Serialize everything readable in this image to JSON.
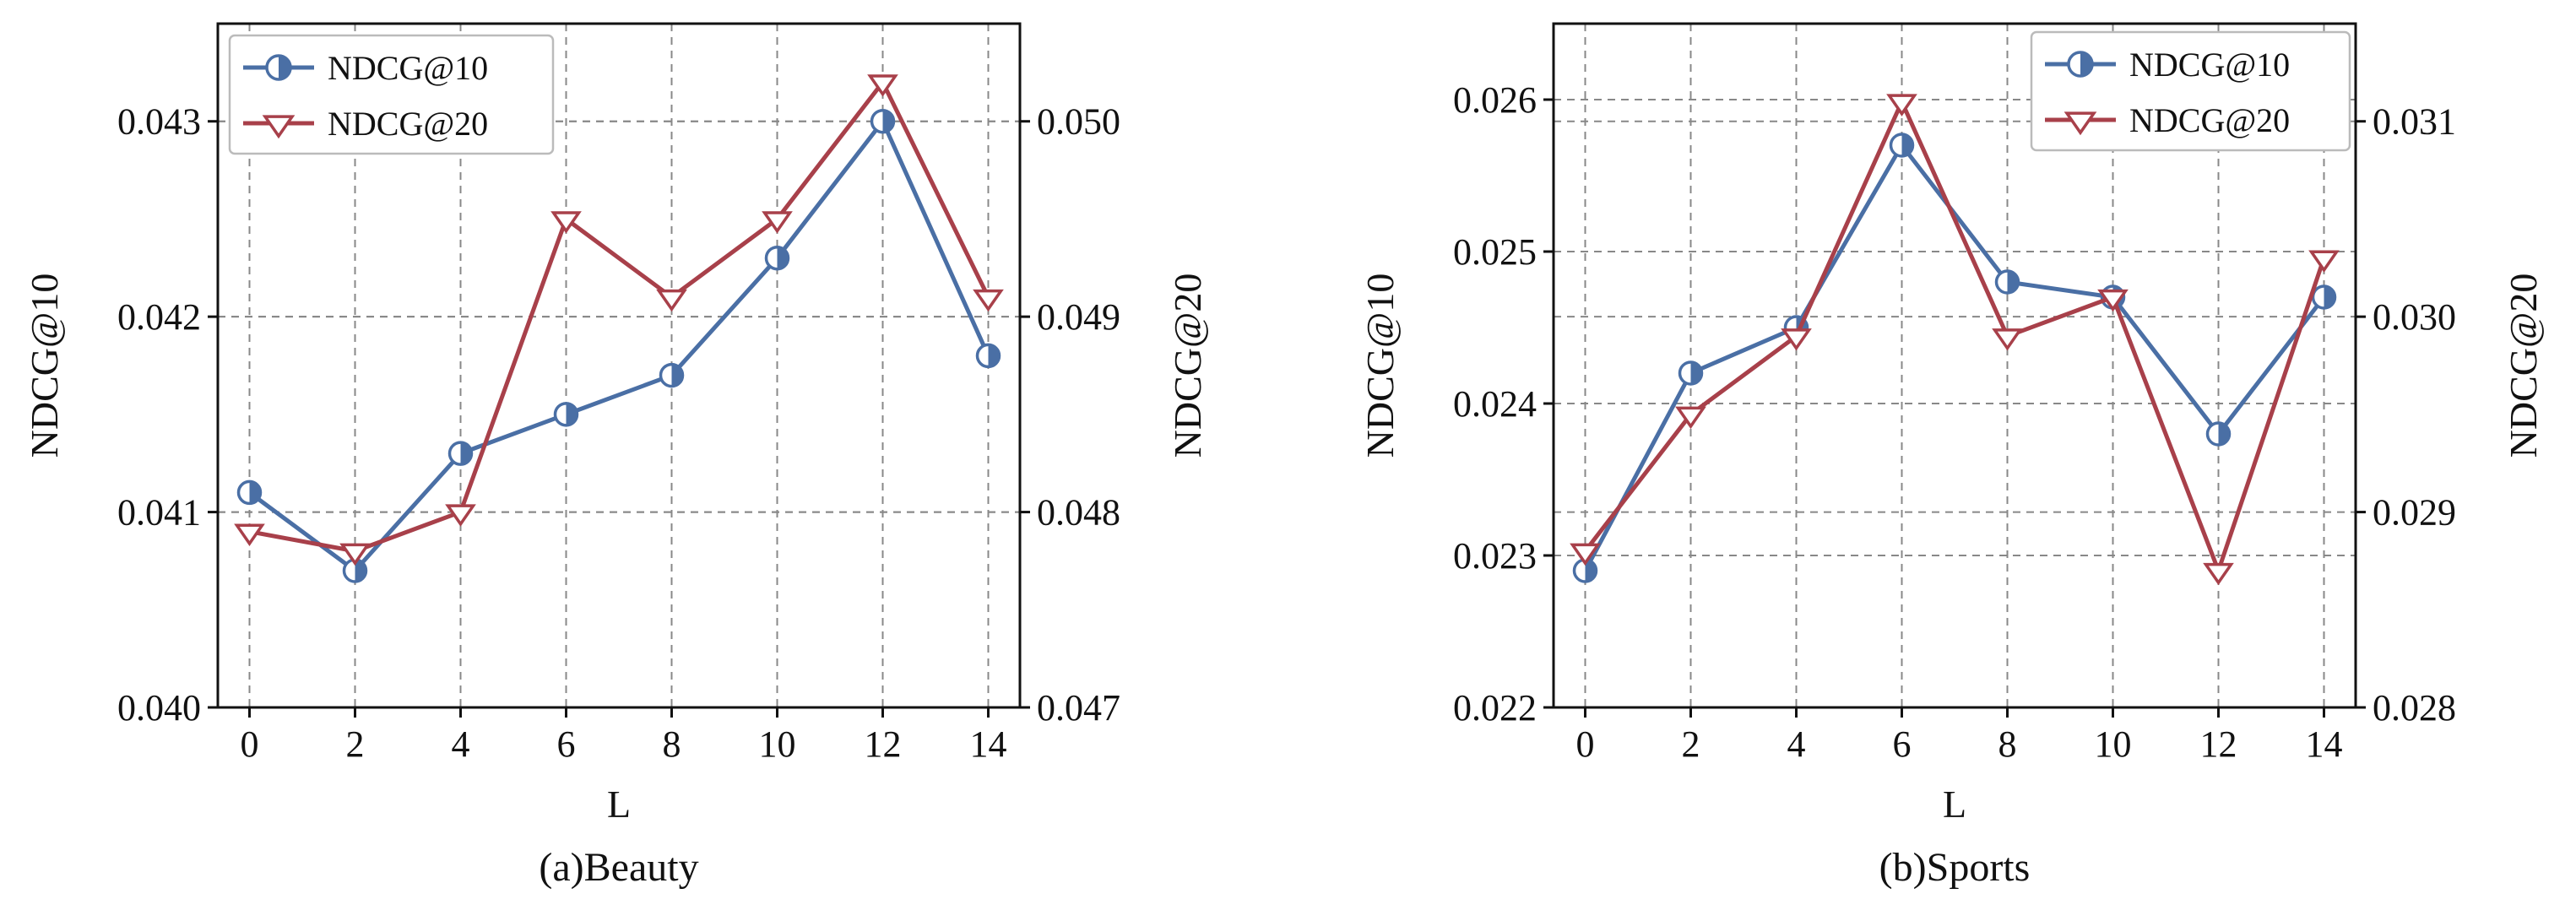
{
  "chart_data": [
    {
      "type": "line",
      "caption": "(a)Beauty",
      "xlabel": "L",
      "ylabel_left": "NDCG@10",
      "ylabel_right": "NDCG@20",
      "x": [
        0,
        2,
        4,
        6,
        8,
        10,
        12,
        14
      ],
      "x_ticks": [
        "0",
        "2",
        "4",
        "6",
        "8",
        "10",
        "12",
        "14"
      ],
      "xlim": [
        -0.6,
        14.6
      ],
      "ylim_left": [
        0.04,
        0.0435
      ],
      "ylim_right": [
        0.047,
        0.0505
      ],
      "y_ticks_left": [
        "0.040",
        "0.041",
        "0.042",
        "0.043"
      ],
      "y_ticks_right": [
        "0.047",
        "0.048",
        "0.049",
        "0.050"
      ],
      "grid": true,
      "legend_position": "top-left",
      "series": [
        {
          "name": "NDCG@10",
          "axis": "left",
          "color": "#4a6fa5",
          "marker": "half-filled-circle",
          "values": [
            0.0411,
            0.0407,
            0.0413,
            0.0415,
            0.0417,
            0.0423,
            0.043,
            0.0418
          ]
        },
        {
          "name": "NDCG@20",
          "axis": "right",
          "color": "#a8404a",
          "marker": "down-triangle",
          "values": [
            0.0479,
            0.0478,
            0.048,
            0.0495,
            0.0491,
            0.0495,
            0.0502,
            0.0491
          ]
        }
      ]
    },
    {
      "type": "line",
      "caption": "(b)Sports",
      "xlabel": "L",
      "ylabel_left": "NDCG@10",
      "ylabel_right": "NDCG@20",
      "x": [
        0,
        2,
        4,
        6,
        8,
        10,
        12,
        14
      ],
      "x_ticks": [
        "0",
        "2",
        "4",
        "6",
        "8",
        "10",
        "12",
        "14"
      ],
      "xlim": [
        -0.6,
        14.6
      ],
      "ylim_left": [
        0.022,
        0.0265
      ],
      "ylim_right": [
        0.028,
        0.0315
      ],
      "y_ticks_left": [
        "0.022",
        "0.023",
        "0.024",
        "0.025",
        "0.026"
      ],
      "y_ticks_right": [
        "0.028",
        "0.029",
        "0.030",
        "0.031"
      ],
      "grid": true,
      "legend_position": "top-right",
      "series": [
        {
          "name": "NDCG@10",
          "axis": "left",
          "color": "#4a6fa5",
          "marker": "half-filled-circle",
          "values": [
            0.0229,
            0.0242,
            0.0245,
            0.0257,
            0.0248,
            0.0247,
            0.0238,
            0.0247
          ]
        },
        {
          "name": "NDCG@20",
          "axis": "right",
          "color": "#a8404a",
          "marker": "down-triangle",
          "values": [
            0.0288,
            0.0295,
            0.0299,
            0.0311,
            0.0299,
            0.0301,
            0.0287,
            0.0303
          ]
        }
      ]
    }
  ]
}
